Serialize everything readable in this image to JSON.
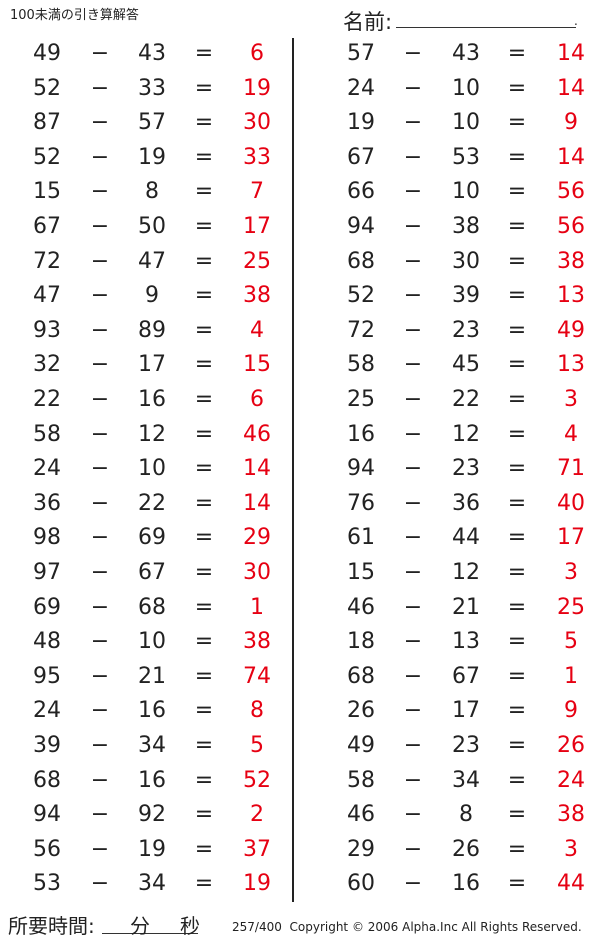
{
  "header": {
    "title": "100未満の引き算解答",
    "name_label": "名前:",
    "name_end": "."
  },
  "footer": {
    "time_label": "所要時間:",
    "minutes_unit": "分",
    "seconds_unit": "秒",
    "page": "257/400",
    "copyright": "Copyright © 2006 Alpha.Inc All Rights Reserved."
  },
  "operators": {
    "minus": "−",
    "equals": "="
  },
  "colors": {
    "answer": "#e60012",
    "text": "#222222"
  },
  "left": [
    [
      "49",
      "43",
      "6"
    ],
    [
      "52",
      "33",
      "19"
    ],
    [
      "87",
      "57",
      "30"
    ],
    [
      "52",
      "19",
      "33"
    ],
    [
      "15",
      "8",
      "7"
    ],
    [
      "67",
      "50",
      "17"
    ],
    [
      "72",
      "47",
      "25"
    ],
    [
      "47",
      "9",
      "38"
    ],
    [
      "93",
      "89",
      "4"
    ],
    [
      "32",
      "17",
      "15"
    ],
    [
      "22",
      "16",
      "6"
    ],
    [
      "58",
      "12",
      "46"
    ],
    [
      "24",
      "10",
      "14"
    ],
    [
      "36",
      "22",
      "14"
    ],
    [
      "98",
      "69",
      "29"
    ],
    [
      "97",
      "67",
      "30"
    ],
    [
      "69",
      "68",
      "1"
    ],
    [
      "48",
      "10",
      "38"
    ],
    [
      "95",
      "21",
      "74"
    ],
    [
      "24",
      "16",
      "8"
    ],
    [
      "39",
      "34",
      "5"
    ],
    [
      "68",
      "16",
      "52"
    ],
    [
      "94",
      "92",
      "2"
    ],
    [
      "56",
      "19",
      "37"
    ],
    [
      "53",
      "34",
      "19"
    ]
  ],
  "right": [
    [
      "57",
      "43",
      "14"
    ],
    [
      "24",
      "10",
      "14"
    ],
    [
      "19",
      "10",
      "9"
    ],
    [
      "67",
      "53",
      "14"
    ],
    [
      "66",
      "10",
      "56"
    ],
    [
      "94",
      "38",
      "56"
    ],
    [
      "68",
      "30",
      "38"
    ],
    [
      "52",
      "39",
      "13"
    ],
    [
      "72",
      "23",
      "49"
    ],
    [
      "58",
      "45",
      "13"
    ],
    [
      "25",
      "22",
      "3"
    ],
    [
      "16",
      "12",
      "4"
    ],
    [
      "94",
      "23",
      "71"
    ],
    [
      "76",
      "36",
      "40"
    ],
    [
      "61",
      "44",
      "17"
    ],
    [
      "15",
      "12",
      "3"
    ],
    [
      "46",
      "21",
      "25"
    ],
    [
      "18",
      "13",
      "5"
    ],
    [
      "68",
      "67",
      "1"
    ],
    [
      "26",
      "17",
      "9"
    ],
    [
      "49",
      "23",
      "26"
    ],
    [
      "58",
      "34",
      "24"
    ],
    [
      "46",
      "8",
      "38"
    ],
    [
      "29",
      "26",
      "3"
    ],
    [
      "60",
      "16",
      "44"
    ]
  ]
}
